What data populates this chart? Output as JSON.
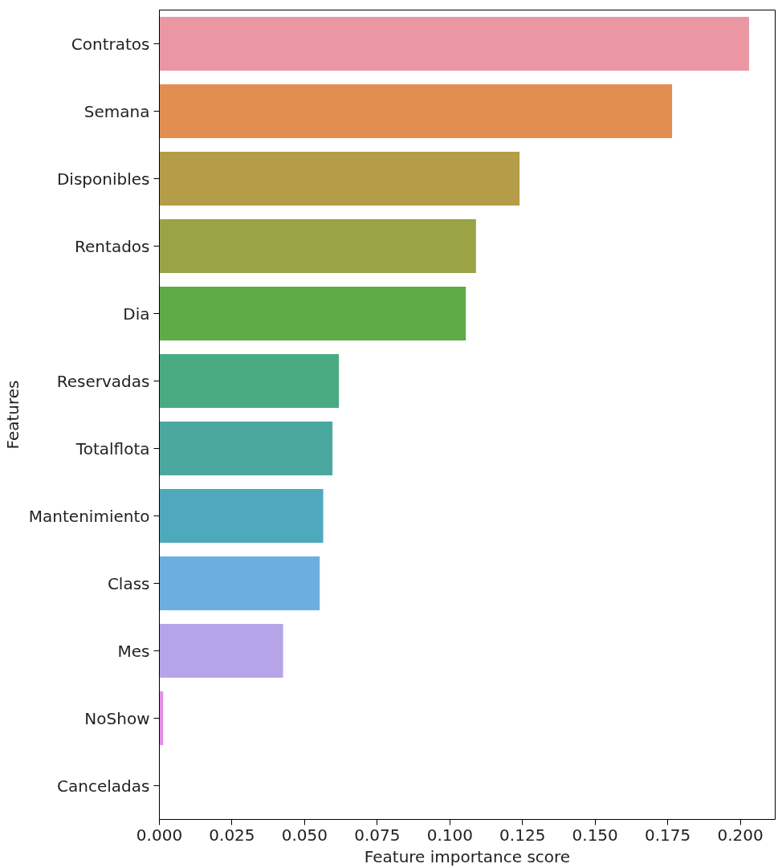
{
  "chart_data": {
    "type": "bar",
    "orientation": "horizontal",
    "xlabel": "Feature importance score",
    "ylabel": "Features",
    "categories": [
      "Contratos",
      "Semana",
      "Disponibles",
      "Rentados",
      "Dia",
      "Reservadas",
      "Totalflota",
      "Mantenimiento",
      "Class",
      "Mes",
      "NoShow",
      "Canceladas"
    ],
    "values": [
      0.203,
      0.1765,
      0.124,
      0.109,
      0.1055,
      0.0618,
      0.0596,
      0.0564,
      0.0552,
      0.0426,
      0.0013,
      0
    ],
    "colors": [
      "#ea96a3",
      "#e08f51",
      "#b59c49",
      "#9aa346",
      "#5fab48",
      "#4aab83",
      "#4ba89f",
      "#4fa9bc",
      "#6caee0",
      "#b5a5e8",
      "#e28ee6",
      "#f08fc6"
    ],
    "xlim": [
      0,
      0.212
    ],
    "xticks": [
      {
        "value": 0,
        "label": "0.000"
      },
      {
        "value": 0.025,
        "label": "0.025"
      },
      {
        "value": 0.05,
        "label": "0.050"
      },
      {
        "value": 0.075,
        "label": "0.075"
      },
      {
        "value": 0.1,
        "label": "0.100"
      },
      {
        "value": 0.125,
        "label": "0.125"
      },
      {
        "value": 0.15,
        "label": "0.150"
      },
      {
        "value": 0.175,
        "label": "0.175"
      },
      {
        "value": 0.2,
        "label": "0.200"
      }
    ],
    "grid": false
  }
}
